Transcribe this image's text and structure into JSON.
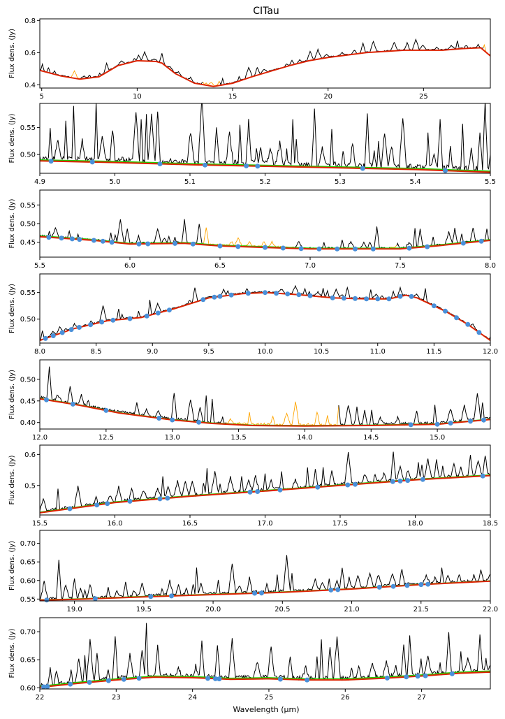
{
  "figure": {
    "title": "CITau",
    "xlabel": "Wavelength (µm)"
  },
  "colors": {
    "spectrum": "#000000",
    "masked": "#ffa500",
    "continuum": "#dd2200",
    "fit": "#22cc00",
    "points": "#4a90d9"
  },
  "chart_data": [
    {
      "type": "line",
      "panel": 1,
      "title": "CITau",
      "xlabel": "",
      "ylabel": "Flux dens. (Jy)",
      "xlim": [
        4.9,
        28.5
      ],
      "ylim": [
        0.38,
        0.81
      ],
      "xticks": [
        {
          "v": 5,
          "t": "5"
        },
        {
          "v": 10,
          "t": "10"
        },
        {
          "v": 15,
          "t": "15"
        },
        {
          "v": 20,
          "t": "20"
        },
        {
          "v": 25,
          "t": "25"
        }
      ],
      "yticks": [
        {
          "v": 0.4,
          "t": "0.4"
        },
        {
          "v": 0.6,
          "t": "0.6"
        },
        {
          "v": 0.8,
          "t": "0.8"
        }
      ],
      "continuum": [
        [
          4.9,
          0.49
        ],
        [
          6,
          0.455
        ],
        [
          7,
          0.435
        ],
        [
          8,
          0.45
        ],
        [
          9,
          0.52
        ],
        [
          10,
          0.55
        ],
        [
          11,
          0.545
        ],
        [
          11.3,
          0.535
        ],
        [
          12,
          0.47
        ],
        [
          13,
          0.41
        ],
        [
          14,
          0.39
        ],
        [
          15,
          0.41
        ],
        [
          16,
          0.45
        ],
        [
          17,
          0.485
        ],
        [
          18,
          0.52
        ],
        [
          19,
          0.55
        ],
        [
          20,
          0.57
        ],
        [
          22,
          0.6
        ],
        [
          24,
          0.615
        ],
        [
          26,
          0.615
        ],
        [
          27,
          0.625
        ],
        [
          28,
          0.63
        ],
        [
          28.5,
          0.58
        ]
      ],
      "masked_ranges": [
        [
          6.4,
          7.0
        ],
        [
          13.4,
          14.3
        ],
        [
          28.1,
          28.5
        ]
      ],
      "peak_amp": 0.05,
      "points": []
    },
    {
      "type": "line",
      "panel": 2,
      "xlabel": "",
      "ylabel": "Flux dens. (Jy)",
      "xlim": [
        4.9,
        5.5
      ],
      "ylim": [
        0.465,
        0.595
      ],
      "xticks": [
        {
          "v": 4.9,
          "t": "4.9"
        },
        {
          "v": 5.0,
          "t": "5.0"
        },
        {
          "v": 5.1,
          "t": "5.1"
        },
        {
          "v": 5.2,
          "t": "5.2"
        },
        {
          "v": 5.3,
          "t": "5.3"
        },
        {
          "v": 5.4,
          "t": "5.4"
        },
        {
          "v": 5.5,
          "t": "5.5"
        }
      ],
      "yticks": [
        {
          "v": 0.5,
          "t": "0.50"
        },
        {
          "v": 0.55,
          "t": "0.55"
        }
      ],
      "continuum": [
        [
          4.9,
          0.488
        ],
        [
          5.0,
          0.485
        ],
        [
          5.1,
          0.481
        ],
        [
          5.2,
          0.478
        ],
        [
          5.3,
          0.475
        ],
        [
          5.4,
          0.472
        ],
        [
          5.5,
          0.467
        ]
      ],
      "fit_offset": 0.002,
      "masked_ranges": [],
      "peak_amp": 0.09,
      "points": [
        4.915,
        4.97,
        5.06,
        5.12,
        5.175,
        5.19,
        5.33,
        5.44
      ]
    },
    {
      "type": "line",
      "panel": 3,
      "xlabel": "",
      "ylabel": "Flux dens. (Jy)",
      "xlim": [
        5.5,
        8.0
      ],
      "ylim": [
        0.41,
        0.59
      ],
      "xticks": [
        {
          "v": 5.5,
          "t": "5.5"
        },
        {
          "v": 6.0,
          "t": "6.0"
        },
        {
          "v": 6.5,
          "t": "6.5"
        },
        {
          "v": 7.0,
          "t": "7.0"
        },
        {
          "v": 7.5,
          "t": "7.5"
        },
        {
          "v": 8.0,
          "t": "8.0"
        }
      ],
      "yticks": [
        {
          "v": 0.45,
          "t": "0.45"
        },
        {
          "v": 0.5,
          "t": "0.50"
        },
        {
          "v": 0.55,
          "t": "0.55"
        }
      ],
      "continuum": [
        [
          5.5,
          0.465
        ],
        [
          5.8,
          0.455
        ],
        [
          6.0,
          0.445
        ],
        [
          6.3,
          0.447
        ],
        [
          6.5,
          0.44
        ],
        [
          7.0,
          0.432
        ],
        [
          7.5,
          0.432
        ],
        [
          7.7,
          0.44
        ],
        [
          8.0,
          0.455
        ]
      ],
      "fit_offset": 0.002,
      "masked_ranges": [
        [
          6.4,
          6.9
        ],
        [
          7.44,
          7.48
        ]
      ],
      "peak_amp": 0.04,
      "points": [
        5.55,
        5.62,
        5.68,
        5.72,
        5.8,
        5.85,
        5.9,
        6.05,
        6.1,
        6.25,
        6.35,
        6.5,
        6.6,
        6.75,
        6.85,
        6.95,
        7.05,
        7.15,
        7.25,
        7.35,
        7.55,
        7.65,
        7.85,
        7.95
      ]
    },
    {
      "type": "line",
      "panel": 4,
      "xlabel": "",
      "ylabel": "Flux dens. (Jy)",
      "xlim": [
        8.0,
        12.0
      ],
      "ylim": [
        0.455,
        0.585
      ],
      "xticks": [
        {
          "v": 8.0,
          "t": "8.0"
        },
        {
          "v": 8.5,
          "t": "8.5"
        },
        {
          "v": 9.0,
          "t": "9.0"
        },
        {
          "v": 9.5,
          "t": "9.5"
        },
        {
          "v": 10.0,
          "t": "10.0"
        },
        {
          "v": 10.5,
          "t": "10.5"
        },
        {
          "v": 11.0,
          "t": "11.0"
        },
        {
          "v": 11.5,
          "t": "11.5"
        },
        {
          "v": 12.0,
          "t": "12.0"
        }
      ],
      "yticks": [
        {
          "v": 0.5,
          "t": "0.50"
        },
        {
          "v": 0.55,
          "t": "0.55"
        }
      ],
      "continuum": [
        [
          8.0,
          0.46
        ],
        [
          8.3,
          0.482
        ],
        [
          8.6,
          0.497
        ],
        [
          8.9,
          0.503
        ],
        [
          9.2,
          0.52
        ],
        [
          9.5,
          0.54
        ],
        [
          9.8,
          0.548
        ],
        [
          10.0,
          0.55
        ],
        [
          10.3,
          0.546
        ],
        [
          10.6,
          0.54
        ],
        [
          10.9,
          0.538
        ],
        [
          11.1,
          0.538
        ],
        [
          11.25,
          0.545
        ],
        [
          11.35,
          0.54
        ],
        [
          11.6,
          0.515
        ],
        [
          11.8,
          0.49
        ],
        [
          12.0,
          0.46
        ]
      ],
      "fit_offset": 0.0,
      "masked_ranges": [],
      "peak_amp": 0.02,
      "points": [
        8.05,
        8.12,
        8.2,
        8.28,
        8.35,
        8.45,
        8.55,
        8.65,
        8.8,
        8.95,
        9.05,
        9.15,
        9.45,
        9.55,
        9.6,
        9.7,
        9.85,
        10.0,
        10.1,
        10.2,
        10.3,
        10.4,
        10.6,
        10.7,
        10.8,
        10.9,
        11.0,
        11.1,
        11.2,
        11.3,
        11.5,
        11.6,
        11.7,
        11.8,
        11.9
      ]
    },
    {
      "type": "line",
      "panel": 5,
      "xlabel": "",
      "ylabel": "Flux dens. (Jy)",
      "xlim": [
        12.0,
        15.4
      ],
      "ylim": [
        0.385,
        0.545
      ],
      "xticks": [
        {
          "v": 12.0,
          "t": "12.0"
        },
        {
          "v": 12.5,
          "t": "12.5"
        },
        {
          "v": 13.0,
          "t": "13.0"
        },
        {
          "v": 13.5,
          "t": "13.5"
        },
        {
          "v": 14.0,
          "t": "14.0"
        },
        {
          "v": 14.5,
          "t": "14.5"
        },
        {
          "v": 15.0,
          "t": "15.0"
        }
      ],
      "yticks": [
        {
          "v": 0.4,
          "t": "0.40"
        },
        {
          "v": 0.45,
          "t": "0.45"
        },
        {
          "v": 0.5,
          "t": "0.50"
        }
      ],
      "continuum": [
        [
          12.0,
          0.455
        ],
        [
          12.3,
          0.44
        ],
        [
          12.6,
          0.422
        ],
        [
          13.0,
          0.406
        ],
        [
          13.3,
          0.398
        ],
        [
          13.6,
          0.393
        ],
        [
          14.0,
          0.392
        ],
        [
          14.5,
          0.393
        ],
        [
          15.0,
          0.396
        ],
        [
          15.4,
          0.407
        ]
      ],
      "fit_offset": 0.001,
      "masked_ranges": [
        [
          13.4,
          14.25
        ]
      ],
      "peak_amp": 0.05,
      "points": [
        12.05,
        12.25,
        12.5,
        12.9,
        13.0,
        13.2,
        14.8,
        15.0,
        15.1,
        15.25,
        15.35
      ]
    },
    {
      "type": "line",
      "panel": 6,
      "xlabel": "",
      "ylabel": "Flux dens. (Jy)",
      "xlim": [
        15.5,
        18.5
      ],
      "ylim": [
        0.405,
        0.63
      ],
      "xticks": [
        {
          "v": 15.5,
          "t": "15.5"
        },
        {
          "v": 16.0,
          "t": "16.0"
        },
        {
          "v": 16.5,
          "t": "16.5"
        },
        {
          "v": 17.0,
          "t": "17.0"
        },
        {
          "v": 17.5,
          "t": "17.5"
        },
        {
          "v": 18.0,
          "t": "18.0"
        },
        {
          "v": 18.5,
          "t": "18.5"
        }
      ],
      "yticks": [
        {
          "v": 0.5,
          "t": "0.5"
        },
        {
          "v": 0.6,
          "t": "0.6"
        }
      ],
      "continuum": [
        [
          15.5,
          0.412
        ],
        [
          16.0,
          0.445
        ],
        [
          16.5,
          0.465
        ],
        [
          17.0,
          0.482
        ],
        [
          17.5,
          0.5
        ],
        [
          18.0,
          0.518
        ],
        [
          18.5,
          0.532
        ]
      ],
      "fit_offset": 0.002,
      "masked_ranges": [],
      "peak_amp": 0.08,
      "points": [
        15.7,
        15.88,
        15.95,
        16.1,
        16.3,
        16.35,
        16.9,
        16.95,
        17.1,
        17.35,
        17.55,
        17.6,
        17.85,
        17.9,
        17.95,
        18.05,
        18.45
      ]
    },
    {
      "type": "line",
      "panel": 7,
      "xlabel": "",
      "ylabel": "Flux dens. (Jy)",
      "xlim": [
        18.75,
        22.0
      ],
      "ylim": [
        0.545,
        0.735
      ],
      "xticks": [
        {
          "v": 19.0,
          "t": "19.0"
        },
        {
          "v": 19.5,
          "t": "19.5"
        },
        {
          "v": 20.0,
          "t": "20.0"
        },
        {
          "v": 20.5,
          "t": "20.5"
        },
        {
          "v": 21.0,
          "t": "21.0"
        },
        {
          "v": 21.5,
          "t": "21.5"
        },
        {
          "v": 22.0,
          "t": "22.0"
        }
      ],
      "yticks": [
        {
          "v": 0.55,
          "t": "0.55"
        },
        {
          "v": 0.6,
          "t": "0.60"
        },
        {
          "v": 0.65,
          "t": "0.65"
        },
        {
          "v": 0.7,
          "t": "0.70"
        }
      ],
      "continuum": [
        [
          18.75,
          0.547
        ],
        [
          19.0,
          0.549
        ],
        [
          19.5,
          0.556
        ],
        [
          20.0,
          0.562
        ],
        [
          20.5,
          0.568
        ],
        [
          21.0,
          0.577
        ],
        [
          21.5,
          0.589
        ],
        [
          22.0,
          0.598
        ]
      ],
      "fit_offset": 0.001,
      "masked_ranges": [],
      "peak_amp": 0.06,
      "points": [
        18.8,
        19.15,
        19.55,
        19.7,
        20.3,
        20.35,
        20.85,
        20.9,
        21.2,
        21.3,
        21.4,
        21.5,
        21.55
      ]
    },
    {
      "type": "line",
      "panel": 8,
      "xlabel": "Wavelength (µm)",
      "ylabel": "Flux dens. (Jy)",
      "xlim": [
        22.0,
        27.9
      ],
      "ylim": [
        0.598,
        0.725
      ],
      "xticks": [
        {
          "v": 22,
          "t": "22"
        },
        {
          "v": 23,
          "t": "23"
        },
        {
          "v": 24,
          "t": "24"
        },
        {
          "v": 25,
          "t": "25"
        },
        {
          "v": 26,
          "t": "26"
        },
        {
          "v": 27,
          "t": "27"
        }
      ],
      "yticks": [
        {
          "v": 0.6,
          "t": "0.60"
        },
        {
          "v": 0.65,
          "t": "0.65"
        },
        {
          "v": 0.7,
          "t": "0.70"
        }
      ],
      "continuum": [
        [
          22.0,
          0.601
        ],
        [
          22.5,
          0.608
        ],
        [
          23.0,
          0.614
        ],
        [
          23.5,
          0.619
        ],
        [
          24.0,
          0.618
        ],
        [
          24.5,
          0.615
        ],
        [
          25.0,
          0.616
        ],
        [
          25.5,
          0.614
        ],
        [
          26.0,
          0.614
        ],
        [
          26.5,
          0.617
        ],
        [
          27.0,
          0.621
        ],
        [
          27.5,
          0.626
        ],
        [
          27.9,
          0.628
        ]
      ],
      "fit_offset": 0.002,
      "masked_ranges": [],
      "peak_amp": 0.06,
      "points": [
        22.05,
        22.1,
        22.4,
        22.65,
        22.9,
        23.1,
        23.3,
        24.2,
        24.3,
        24.35,
        25.15,
        25.5,
        26.55,
        26.8,
        26.95,
        27.05,
        27.4
      ]
    }
  ]
}
